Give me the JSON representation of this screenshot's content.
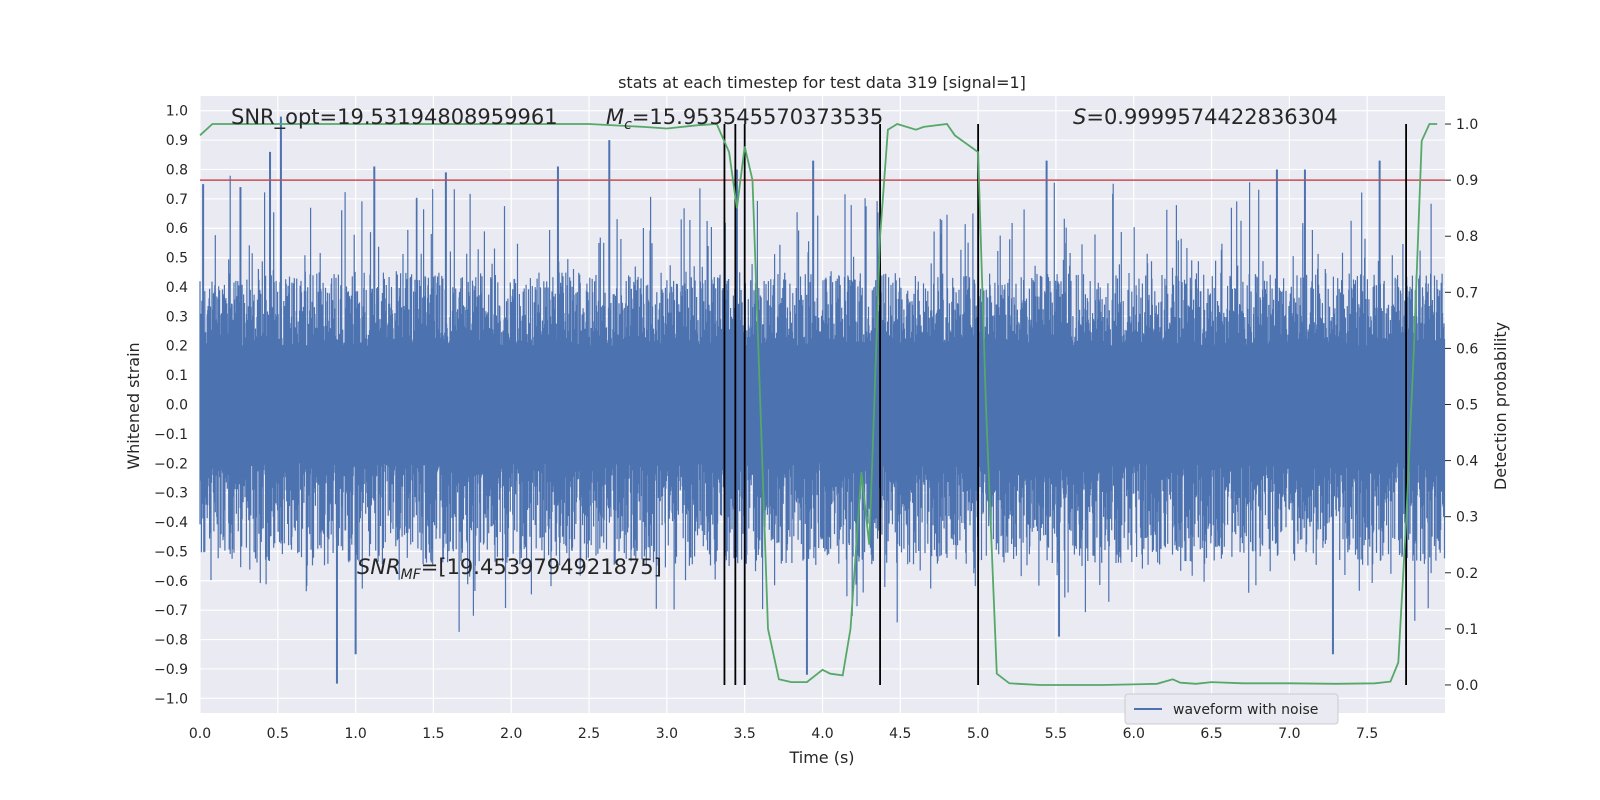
{
  "chart_data": {
    "type": "line",
    "title": "stats at each timestep for test data 319 [signal=1]",
    "xlabel": "Time (s)",
    "ylabel_left": "Whitened strain",
    "ylabel_right": "Detection probability",
    "xlim": [
      0.0,
      8.0
    ],
    "ylim_left": [
      -1.05,
      1.05
    ],
    "ylim_right": [
      -0.05,
      1.05
    ],
    "xticks": [
      "0.0",
      "0.5",
      "1.0",
      "1.5",
      "2.0",
      "2.5",
      "3.0",
      "3.5",
      "4.0",
      "4.5",
      "5.0",
      "5.5",
      "6.0",
      "6.5",
      "7.0",
      "7.5"
    ],
    "yticks_left": [
      "1.0",
      "0.9",
      "0.8",
      "0.7",
      "0.6",
      "0.5",
      "0.4",
      "0.3",
      "0.2",
      "0.1",
      "0.0",
      "-0.1",
      "-0.2",
      "-0.3",
      "-0.4",
      "-0.5",
      "-0.6",
      "-0.7",
      "-0.8",
      "-0.9",
      "-1.0"
    ],
    "yticks_right": [
      "1.0",
      "0.9",
      "0.8",
      "0.7",
      "0.6",
      "0.5",
      "0.4",
      "0.3",
      "0.2",
      "0.1",
      "0.0"
    ],
    "grid": true,
    "legend": {
      "position": "lower-right",
      "entries": [
        {
          "label": "waveform with noise",
          "color": "#4c72b0"
        }
      ]
    },
    "annotations": {
      "snr_opt": "SNR_opt=19.53194808959961",
      "mc_symbol": "M",
      "mc_subscript": "c",
      "mc_value": "=15.953545570373535",
      "s_symbol": "S",
      "s_value": "=0.9999574422836304",
      "snrmf_symbol": "SNR",
      "snrmf_subscript": "MF",
      "snrmf_value": "=[19.4539794921875]"
    },
    "threshold_line": {
      "value_right_axis": 0.9,
      "color": "#c44e52"
    },
    "event_lines_x": [
      3.37,
      3.44,
      3.5,
      4.37,
      5.0,
      7.75
    ],
    "series": [
      {
        "name": "waveform with noise",
        "axis": "left",
        "color": "#4c72b0",
        "kind": "noise-envelope",
        "typical_upper_envelope": [
          0.2,
          0.45
        ],
        "typical_lower_envelope": [
          -0.2,
          -0.55
        ],
        "x": [
          0.02,
          0.26,
          0.45,
          0.52,
          0.88,
          1.0,
          1.12,
          1.58,
          2.3,
          2.63,
          3.45,
          3.9,
          3.94,
          5.44,
          5.52,
          6.92,
          7.1,
          7.28,
          7.58
        ],
        "y": [
          0.75,
          0.74,
          0.86,
          0.98,
          -0.95,
          -0.85,
          0.81,
          0.79,
          0.81,
          0.9,
          0.8,
          -0.92,
          0.83,
          0.83,
          -0.79,
          0.8,
          0.8,
          -0.85,
          0.83
        ]
      },
      {
        "name": "",
        "axis": "right",
        "color": "#55a868",
        "x": [
          0.0,
          0.08,
          0.5,
          1.0,
          1.5,
          2.0,
          2.5,
          2.85,
          3.0,
          3.2,
          3.32,
          3.4,
          3.45,
          3.5,
          3.55,
          3.6,
          3.65,
          3.72,
          3.8,
          3.9,
          4.0,
          4.05,
          4.13,
          4.18,
          4.25,
          4.3,
          4.32,
          4.37,
          4.42,
          4.48,
          4.6,
          4.65,
          4.8,
          4.85,
          4.95,
          5.0,
          5.05,
          5.12,
          5.2,
          5.4,
          5.8,
          6.15,
          6.25,
          6.3,
          6.4,
          6.5,
          6.7,
          7.0,
          7.3,
          7.55,
          7.65,
          7.7,
          7.75,
          7.8,
          7.85,
          7.9,
          7.95
        ],
        "y": [
          0.98,
          1.0,
          1.0,
          1.0,
          1.0,
          1.0,
          1.0,
          0.995,
          0.992,
          0.998,
          1.0,
          0.95,
          0.85,
          0.96,
          0.9,
          0.5,
          0.1,
          0.01,
          0.005,
          0.005,
          0.027,
          0.02,
          0.017,
          0.1,
          0.38,
          0.25,
          0.4,
          0.8,
          0.99,
          1.0,
          0.99,
          0.995,
          1.0,
          0.98,
          0.96,
          0.95,
          0.5,
          0.02,
          0.003,
          0.0,
          0.0,
          0.002,
          0.01,
          0.004,
          0.002,
          0.005,
          0.003,
          0.003,
          0.002,
          0.003,
          0.006,
          0.04,
          0.29,
          0.6,
          0.97,
          1.0,
          1.0
        ]
      }
    ]
  }
}
